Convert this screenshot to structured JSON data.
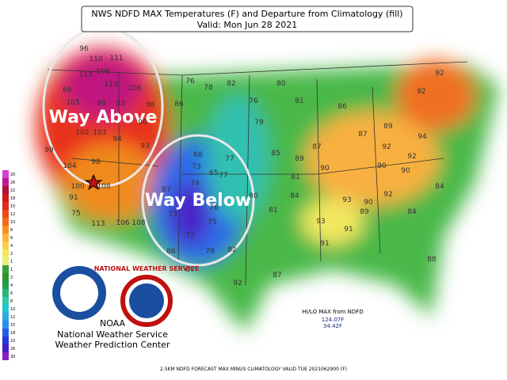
{
  "header": {
    "title": "NWS NDFD MAX Temperatures (F) and Departure from Climatology (fill)",
    "subtitle": "Valid: Mon Jun 28 2021"
  },
  "annotations": {
    "above": "Way Above",
    "below": "Way Below"
  },
  "legend": {
    "labels": [
      20,
      26,
      22,
      18,
      15,
      12,
      10,
      8,
      6,
      4,
      2,
      1,
      1,
      2,
      4,
      6,
      8,
      10,
      12,
      15,
      18,
      22,
      26,
      30
    ],
    "colors": [
      "#d43fd4",
      "#c0189a",
      "#b0103a",
      "#d01818",
      "#e02a1a",
      "#ee4a18",
      "#f46a1a",
      "#f8901e",
      "#fab43a",
      "#f8d04a",
      "#f2e85a",
      "#e8f07a",
      "#3aa03a",
      "#2c962e",
      "#20a050",
      "#28b478",
      "#30c8a8",
      "#20c8d0",
      "#30a8e0",
      "#2890f0",
      "#2060e8",
      "#2838d8",
      "#4420c8",
      "#8a20c0"
    ]
  },
  "hilo": {
    "title": "HI/LO MAX from NDFD",
    "hi": "124.07F",
    "lo": "34.42F"
  },
  "logo": {
    "nws_ring": "NATIONAL WEATHER SERVICE",
    "noaa": "NOAA",
    "agency": "National Weather Service",
    "center": "Weather Prediction Center"
  },
  "footer": "2.5KM NDFD FORECAST MAX MINUS CLIMATOLOGY VALID TUE 2021062900 (F)",
  "temperatures": [
    96,
    110,
    111,
    113,
    106,
    113,
    106,
    66,
    105,
    99,
    93,
    90,
    86,
    86,
    93,
    94,
    103,
    102,
    99,
    104,
    98,
    108,
    100,
    91,
    75,
    113,
    106,
    108,
    68,
    73,
    77,
    65,
    74,
    77,
    87,
    73,
    76,
    72,
    75,
    79,
    86,
    87,
    82,
    80,
    82,
    78,
    76,
    76,
    80,
    81,
    79,
    85,
    81,
    81,
    84,
    89,
    87,
    90,
    86,
    87,
    92,
    92,
    90,
    93,
    90,
    92,
    91,
    89,
    92,
    94,
    89,
    90,
    91,
    84,
    92,
    88,
    87,
    92,
    84,
    93
  ]
}
